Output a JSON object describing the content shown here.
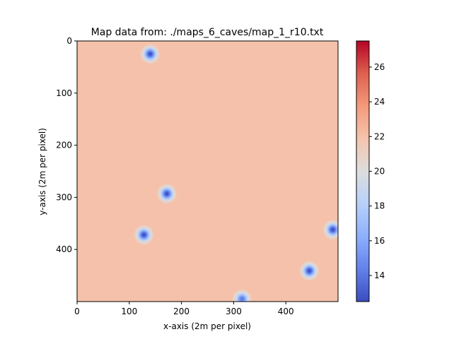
{
  "chart_data": {
    "type": "heatmap",
    "title": "Map data from: ./maps_6_caves/map_1_r10.txt",
    "xlabel": "x-axis (2m per pixel)",
    "ylabel": "y-axis (2m per pixel)",
    "xlim": [
      0,
      500
    ],
    "ylim": [
      500,
      0
    ],
    "xticks": [
      0,
      100,
      200,
      300,
      400
    ],
    "yticks": [
      0,
      100,
      200,
      300,
      400
    ],
    "background_value": 22,
    "colorbar": {
      "colormap": "coolwarm",
      "range": [
        12.5,
        27.5
      ],
      "ticks": [
        14,
        16,
        18,
        20,
        22,
        24,
        26
      ]
    },
    "caves": [
      {
        "x": 140,
        "y": 25,
        "min_value": 12.5,
        "radius": 20
      },
      {
        "x": 172,
        "y": 293,
        "min_value": 12.5,
        "radius": 20
      },
      {
        "x": 128,
        "y": 372,
        "min_value": 12.5,
        "radius": 20
      },
      {
        "x": 490,
        "y": 362,
        "min_value": 12.5,
        "radius": 20
      },
      {
        "x": 445,
        "y": 441,
        "min_value": 12.5,
        "radius": 20
      },
      {
        "x": 316,
        "y": 495,
        "min_value": 14,
        "radius": 20
      }
    ]
  }
}
